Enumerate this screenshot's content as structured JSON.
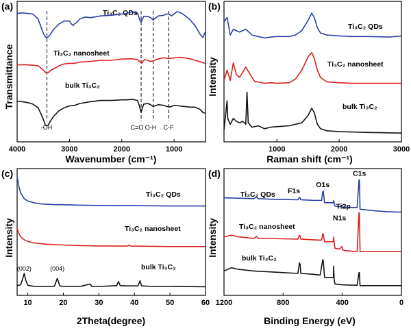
{
  "colors": {
    "blue": "#2a3ea8",
    "red": "#d91f1f",
    "black": "#111111"
  },
  "chart_data": [
    {
      "panel": "(a)",
      "type": "line",
      "xlabel": "Wavenumber (cm⁻¹)",
      "ylabel": "Transmittance",
      "xlim": [
        4000,
        400
      ],
      "xticks": [
        4000,
        3000,
        2000,
        1000
      ],
      "series": [
        {
          "name": "Ti₃C₂ QDs",
          "color": "blue",
          "offset": 3.1,
          "x": [
            4000,
            3900,
            3800,
            3700,
            3600,
            3550,
            3500,
            3460,
            3430,
            3400,
            3360,
            3300,
            3200,
            3100,
            3000,
            2960,
            2930,
            2900,
            2850,
            2800,
            2700,
            2600,
            2400,
            2200,
            2000,
            1900,
            1800,
            1700,
            1660,
            1630,
            1610,
            1580,
            1500,
            1450,
            1400,
            1380,
            1300,
            1200,
            1150,
            1100,
            1050,
            1000,
            950,
            900,
            850,
            800,
            700,
            600,
            500,
            450,
            400
          ],
          "y": [
            0.8,
            0.82,
            0.8,
            0.78,
            0.62,
            0.38,
            0.15,
            0.02,
            0.0,
            0.03,
            0.12,
            0.28,
            0.45,
            0.55,
            0.55,
            0.45,
            0.4,
            0.46,
            0.52,
            0.62,
            0.68,
            0.66,
            0.72,
            0.74,
            0.78,
            0.8,
            0.86,
            0.82,
            0.6,
            0.5,
            0.6,
            0.7,
            0.7,
            0.66,
            0.58,
            0.62,
            0.72,
            0.74,
            0.78,
            0.78,
            0.72,
            0.78,
            0.86,
            0.84,
            0.8,
            0.74,
            0.6,
            0.4,
            0.1,
            0.0,
            0.2
          ]
        },
        {
          "name": "Ti₃C₂ nanosheet",
          "color": "red",
          "offset": 1.85,
          "x": [
            4000,
            3800,
            3600,
            3550,
            3500,
            3460,
            3430,
            3400,
            3350,
            3300,
            3200,
            3100,
            3000,
            2900,
            2800,
            2600,
            2400,
            2200,
            2000,
            1800,
            1700,
            1650,
            1620,
            1600,
            1560,
            1500,
            1450,
            1400,
            1300,
            1200,
            1100,
            1000,
            900,
            800,
            700,
            600,
            500,
            450,
            400
          ],
          "y": [
            0.35,
            0.35,
            0.32,
            0.25,
            0.18,
            0.1,
            0.08,
            0.1,
            0.18,
            0.22,
            0.32,
            0.38,
            0.4,
            0.4,
            0.44,
            0.46,
            0.5,
            0.5,
            0.54,
            0.55,
            0.52,
            0.45,
            0.4,
            0.46,
            0.52,
            0.5,
            0.46,
            0.48,
            0.55,
            0.58,
            0.56,
            0.58,
            0.6,
            0.58,
            0.55,
            0.5,
            0.45,
            0.42,
            0.4
          ]
        },
        {
          "name": "bulk Ti₃C₂",
          "color": "black",
          "offset": 0.0,
          "x": [
            4000,
            3900,
            3800,
            3700,
            3600,
            3550,
            3500,
            3460,
            3430,
            3400,
            3360,
            3300,
            3200,
            3100,
            3000,
            2900,
            2800,
            2600,
            2400,
            2200,
            2000,
            1900,
            1800,
            1700,
            1660,
            1630,
            1610,
            1580,
            1500,
            1450,
            1400,
            1300,
            1200,
            1100,
            1050,
            1000,
            900,
            800,
            700,
            600,
            500,
            450,
            400
          ],
          "y": [
            1.0,
            0.98,
            0.95,
            0.9,
            0.78,
            0.6,
            0.4,
            0.2,
            0.18,
            0.22,
            0.35,
            0.5,
            0.68,
            0.78,
            0.84,
            0.86,
            0.92,
            0.98,
            1.02,
            1.02,
            1.04,
            1.04,
            1.06,
            1.02,
            0.82,
            0.62,
            0.75,
            0.9,
            0.92,
            0.88,
            0.82,
            0.88,
            0.86,
            0.8,
            0.82,
            0.86,
            0.84,
            0.82,
            0.8,
            0.8,
            0.72,
            0.62,
            0.6
          ]
        }
      ],
      "vlines": [
        {
          "x": 3430,
          "label": "-OH"
        },
        {
          "x": 1630,
          "label": "C=O"
        },
        {
          "x": 1400,
          "label": "O-H"
        },
        {
          "x": 1100,
          "label": "C-F"
        }
      ]
    },
    {
      "panel": "(b)",
      "type": "line",
      "xlabel": "Raman shift (cm⁻¹)",
      "ylabel": "Intensity",
      "xlim": [
        150,
        3000
      ],
      "xticks": [
        1000,
        2000,
        3000
      ],
      "series": [
        {
          "name": "Ti₃C₂ QDs",
          "color": "blue",
          "offset": 3.0,
          "x": [
            150,
            200,
            250,
            300,
            400,
            500,
            600,
            700,
            800,
            900,
            1000,
            1100,
            1200,
            1300,
            1400,
            1500,
            1560,
            1600,
            1650,
            1700,
            1800,
            2000,
            2200,
            2500,
            2800,
            3000
          ],
          "y": [
            0.8,
            0.95,
            0.35,
            0.55,
            0.45,
            0.55,
            0.35,
            0.3,
            0.25,
            0.28,
            0.3,
            0.3,
            0.3,
            0.35,
            0.5,
            0.85,
            1.1,
            0.95,
            0.6,
            0.42,
            0.35,
            0.32,
            0.3,
            0.3,
            0.28,
            0.32
          ]
        },
        {
          "name": "Ti₃C₂ nanosheet",
          "color": "red",
          "offset": 1.7,
          "x": [
            150,
            200,
            250,
            300,
            350,
            400,
            500,
            600,
            650,
            700,
            800,
            900,
            1000,
            1200,
            1300,
            1400,
            1500,
            1560,
            1600,
            1650,
            1700,
            1800,
            2000,
            2200,
            2500,
            2800,
            3000
          ],
          "y": [
            0.1,
            0.45,
            0.1,
            0.7,
            0.3,
            0.2,
            0.55,
            0.2,
            0.05,
            0.05,
            0.0,
            0.02,
            0.0,
            0.02,
            0.15,
            0.45,
            0.9,
            1.05,
            0.85,
            0.45,
            0.2,
            0.05,
            0.02,
            0.0,
            0.0,
            0.0,
            0.0
          ]
        },
        {
          "name": "bulk Ti₃C₂",
          "color": "black",
          "offset": 0.0,
          "x": [
            150,
            200,
            210,
            250,
            300,
            350,
            400,
            450,
            500,
            520,
            540,
            600,
            700,
            800,
            900,
            1000,
            1200,
            1400,
            1500,
            1560,
            1600,
            1650,
            1700,
            1800,
            2000,
            2500,
            3000
          ],
          "y": [
            0.1,
            1.1,
            0.5,
            0.3,
            0.5,
            0.4,
            0.35,
            0.4,
            0.3,
            1.4,
            0.35,
            0.2,
            0.25,
            0.15,
            0.2,
            0.22,
            0.25,
            0.35,
            0.6,
            0.85,
            0.7,
            0.3,
            0.15,
            0.08,
            0.05,
            0.02,
            0.0
          ]
        }
      ]
    },
    {
      "panel": "(c)",
      "type": "line",
      "xlabel": "2Theta(degree)",
      "ylabel": "Intensity",
      "xlim": [
        7,
        60
      ],
      "xticks": [
        10,
        20,
        30,
        40,
        50,
        60
      ],
      "series": [
        {
          "name": "Ti₃C₂ QDs",
          "color": "blue",
          "offset": 5.0,
          "x": [
            7,
            7.5,
            8,
            9,
            10,
            12,
            14,
            16,
            18,
            20,
            25,
            30,
            40,
            50,
            60
          ],
          "y": [
            1.8,
            1.2,
            0.8,
            0.45,
            0.3,
            0.18,
            0.12,
            0.1,
            0.08,
            0.08,
            0.05,
            0.03,
            0.02,
            0.0,
            0.0
          ]
        },
        {
          "name": "Ti₃C₂ nanosheet",
          "color": "red",
          "offset": 2.5,
          "x": [
            7,
            7.5,
            8,
            9,
            10,
            12,
            15,
            18,
            20,
            25,
            30,
            38,
            38.5,
            39,
            45,
            50,
            60
          ],
          "y": [
            1.1,
            0.8,
            0.6,
            0.42,
            0.32,
            0.22,
            0.15,
            0.12,
            0.1,
            0.06,
            0.04,
            0.03,
            0.1,
            0.03,
            0.02,
            0.0,
            0.0
          ]
        },
        {
          "name": "bulk Ti₃C₂",
          "color": "black",
          "offset": 0.0,
          "x": [
            7,
            8,
            8.6,
            9.0,
            9.4,
            10,
            12,
            15,
            17.5,
            18.3,
            19.0,
            20,
            25,
            27.5,
            28,
            30,
            35,
            35.5,
            36,
            38,
            41,
            41.6,
            42,
            45,
            50,
            55,
            60
          ],
          "y": [
            0.1,
            0.15,
            0.55,
            0.85,
            0.45,
            0.12,
            0.05,
            0.05,
            0.06,
            0.55,
            0.08,
            0.05,
            0.06,
            0.2,
            0.05,
            0.05,
            0.1,
            0.35,
            0.1,
            0.08,
            0.08,
            0.4,
            0.08,
            0.05,
            0.05,
            0.04,
            0.03
          ]
        }
      ],
      "annotations": [
        {
          "x": 9.0,
          "label": "(002)"
        },
        {
          "x": 18.3,
          "label": "(004)"
        }
      ]
    },
    {
      "panel": "(d)",
      "type": "line",
      "xlabel": "Binding Energy (eV)",
      "ylabel": "Intensity",
      "xlim": [
        1200,
        0
      ],
      "xticks": [
        1200,
        800,
        400,
        0
      ],
      "series": [
        {
          "name": "Ti₃C₂ QDs",
          "color": "blue",
          "offset": 4.5,
          "x": [
            1200,
            1100,
            1000,
            980,
            970,
            900,
            800,
            700,
            690,
            685,
            680,
            600,
            540,
            532,
            528,
            520,
            460,
            458,
            455,
            450,
            420,
            402,
            398,
            380,
            300,
            287,
            284,
            280,
            200,
            100,
            0
          ],
          "y": [
            0.9,
            0.88,
            0.85,
            0.95,
            0.85,
            0.82,
            0.8,
            0.78,
            0.92,
            0.9,
            0.78,
            0.75,
            0.74,
            1.3,
            1.3,
            0.6,
            0.6,
            0.75,
            0.55,
            0.4,
            0.35,
            0.45,
            0.33,
            0.32,
            0.3,
            2.0,
            2.0,
            0.2,
            0.12,
            0.05,
            0.02
          ]
        },
        {
          "name": "Ti₃C₂ nanosheet",
          "color": "red",
          "offset": 2.1,
          "x": [
            1200,
            1150,
            1100,
            1050,
            1000,
            980,
            970,
            900,
            800,
            700,
            690,
            685,
            680,
            600,
            540,
            532,
            528,
            520,
            460,
            458,
            455,
            450,
            420,
            402,
            398,
            380,
            300,
            287,
            284,
            280,
            200,
            100,
            0
          ],
          "y": [
            0.9,
            1.0,
            0.9,
            0.85,
            0.8,
            0.92,
            0.82,
            0.8,
            0.78,
            0.76,
            1.0,
            0.95,
            0.76,
            0.72,
            0.7,
            1.1,
            1.05,
            0.6,
            0.6,
            0.9,
            0.55,
            0.2,
            0.15,
            0.3,
            0.1,
            0.05,
            0.0,
            2.4,
            2.3,
            0.0,
            0.0,
            0.0,
            0.0
          ]
        },
        {
          "name": "bulk Ti₃C₂",
          "color": "black",
          "offset": 0.0,
          "x": [
            1200,
            1150,
            1100,
            1050,
            1000,
            900,
            800,
            700,
            690,
            685,
            680,
            600,
            550,
            532,
            528,
            520,
            460,
            458,
            455,
            450,
            400,
            300,
            287,
            284,
            280,
            200,
            100,
            0
          ],
          "y": [
            0.9,
            1.1,
            1.0,
            0.95,
            0.9,
            0.85,
            0.8,
            0.75,
            1.4,
            1.3,
            0.75,
            0.7,
            0.65,
            1.6,
            1.5,
            0.5,
            0.5,
            1.2,
            0.4,
            0.1,
            0.05,
            0.02,
            0.8,
            0.8,
            0.0,
            0.0,
            0.0,
            0.0
          ]
        }
      ],
      "annotations": [
        {
          "x": 690,
          "label": "F1s"
        },
        {
          "x": 532,
          "label": "O1s"
        },
        {
          "x": 458,
          "label": "Ti2p"
        },
        {
          "x": 400,
          "label": "N1s"
        },
        {
          "x": 284,
          "label": "C1s"
        }
      ]
    }
  ]
}
